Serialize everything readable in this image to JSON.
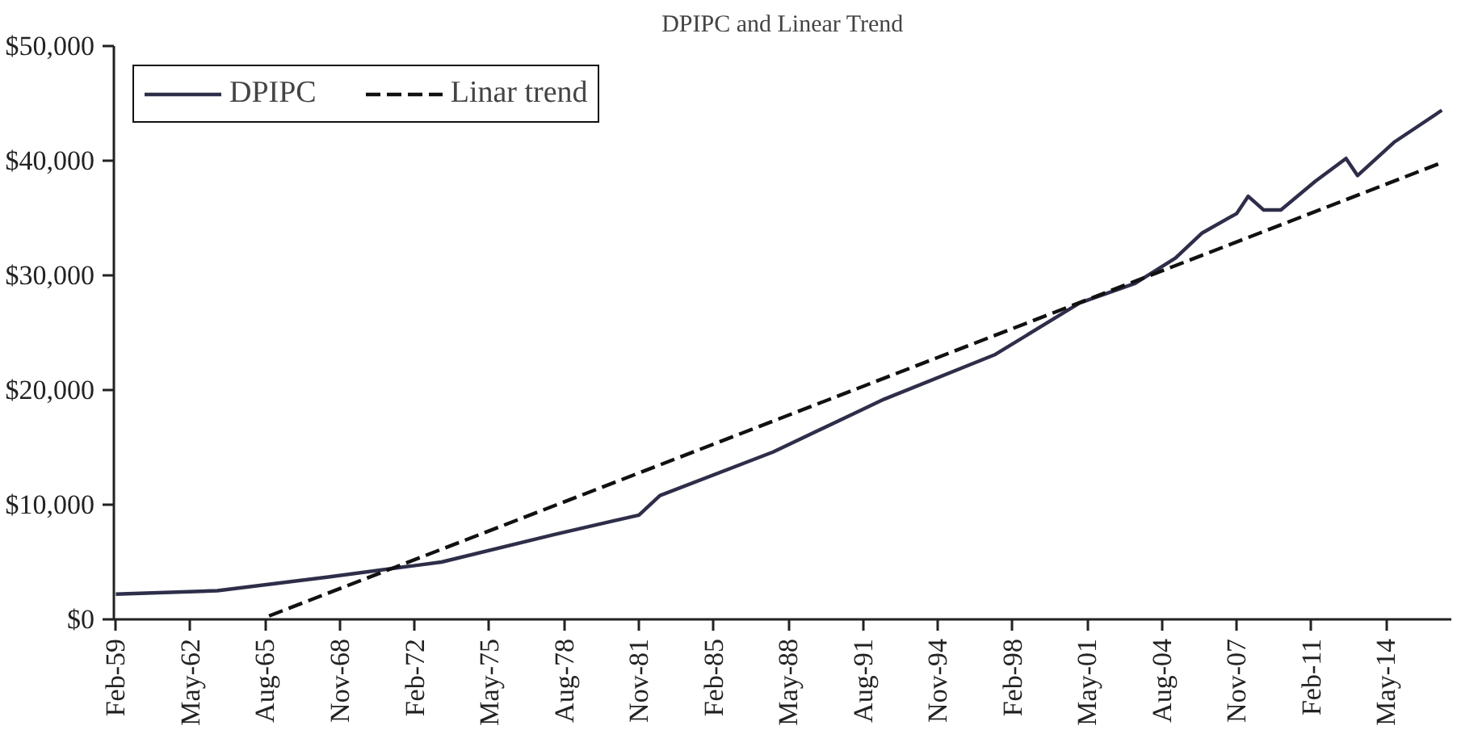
{
  "chart_data": {
    "type": "line",
    "title": "DPIPC and Linear Trend",
    "x": [
      "1959-02",
      "1963-07",
      "1968-05",
      "1973-04",
      "1978-03",
      "1981-11",
      "1982-10",
      "1987-09",
      "1992-07",
      "1997-05",
      "2001-01",
      "2003-06",
      "2005-03",
      "2006-05",
      "2007-11",
      "2008-05",
      "2009-01",
      "2009-10",
      "2011-04",
      "2012-08",
      "2013-02",
      "2014-09",
      "2016-10"
    ],
    "series": [
      {
        "name": "DPIPC",
        "color": "#2e2e4a",
        "line_style": "solid",
        "values": [
          2200,
          2500,
          3700,
          5000,
          7400,
          9100,
          10800,
          14600,
          19200,
          23100,
          27600,
          29300,
          31500,
          33700,
          35400,
          36900,
          35700,
          35700,
          38200,
          40200,
          38700,
          41600,
          44400
        ]
      },
      {
        "name": "Linar trend",
        "type": "line",
        "color": "#111111",
        "line_style": "dashed",
        "x": [
          "1965-10",
          "2016-11"
        ],
        "values": [
          300,
          39900
        ]
      }
    ],
    "xlim": [
      "1959-01",
      "2017-03"
    ],
    "xticks": [
      {
        "value": "1959-02",
        "label": "Feb-59"
      },
      {
        "value": "1962-05",
        "label": "May-62"
      },
      {
        "value": "1965-08",
        "label": "Aug-65"
      },
      {
        "value": "1968-11",
        "label": "Nov-68"
      },
      {
        "value": "1972-02",
        "label": "Feb-72"
      },
      {
        "value": "1975-05",
        "label": "May-75"
      },
      {
        "value": "1978-08",
        "label": "Aug-78"
      },
      {
        "value": "1981-11",
        "label": "Nov-81"
      },
      {
        "value": "1985-02",
        "label": "Feb-85"
      },
      {
        "value": "1988-05",
        "label": "May-88"
      },
      {
        "value": "1991-08",
        "label": "Aug-91"
      },
      {
        "value": "1994-11",
        "label": "Nov-94"
      },
      {
        "value": "1998-02",
        "label": "Feb-98"
      },
      {
        "value": "2001-05",
        "label": "May-01"
      },
      {
        "value": "2004-08",
        "label": "Aug-04"
      },
      {
        "value": "2007-11",
        "label": "Nov-07"
      },
      {
        "value": "2011-02",
        "label": "Feb-11"
      },
      {
        "value": "2014-05",
        "label": "May-14"
      }
    ],
    "ylim": [
      0,
      50000
    ],
    "yticks": [
      {
        "value": 0,
        "label": "$0"
      },
      {
        "value": 10000,
        "label": "$10,000"
      },
      {
        "value": 20000,
        "label": "$20,000"
      },
      {
        "value": 30000,
        "label": "$30,000"
      },
      {
        "value": 40000,
        "label": "$40,000"
      },
      {
        "value": 50000,
        "label": "$50,000"
      }
    ],
    "grid": false,
    "legend": "top left"
  }
}
